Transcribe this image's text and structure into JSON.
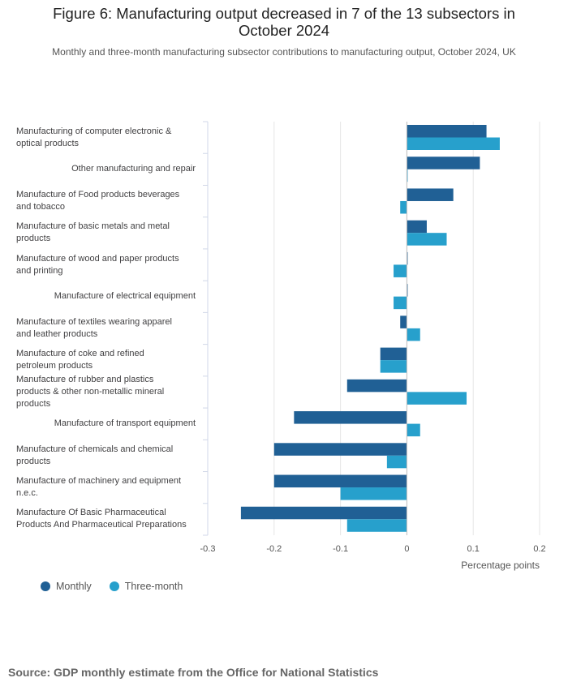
{
  "title": "Figure 6: Manufacturing output decreased in 7 of the 13 subsectors in October 2024",
  "subtitle": "Monthly and three-month manufacturing subsector contributions to manufacturing output, October 2024, UK",
  "source": "Source: GDP monthly estimate from the Office for National Statistics",
  "colors": {
    "monthly": "#206095",
    "three_month": "#27a0cc",
    "grid": "#e5e5e5",
    "axis": "#d0d7e8"
  },
  "legend": [
    {
      "name": "Monthly",
      "color": "#206095"
    },
    {
      "name": "Three-month",
      "color": "#27a0cc"
    }
  ],
  "chart_data": {
    "type": "bar",
    "orientation": "horizontal",
    "title": "Figure 6: Manufacturing output decreased in 7 of the 13 subsectors in October 2024",
    "xlabel": "Percentage points",
    "ylabel": "",
    "xlim": [
      -0.3,
      0.2
    ],
    "xticks": [
      -0.3,
      -0.2,
      -0.1,
      0,
      0.1,
      0.2
    ],
    "xtick_labels": [
      "-0.3",
      "-0.2",
      "-0.1",
      "0",
      "0.1",
      "0.2"
    ],
    "grid": true,
    "legend_position": "bottom-left",
    "categories": [
      [
        "Manufacturing of computer electronic &",
        "optical products"
      ],
      [
        "Other manufacturing and repair"
      ],
      [
        "Manufacture of Food products beverages",
        "and tobacco"
      ],
      [
        "Manufacture of basic metals and metal",
        "products"
      ],
      [
        "Manufacture of wood and paper products",
        "and printing"
      ],
      [
        "Manufacture of electrical equipment"
      ],
      [
        "Manufacture of textiles wearing apparel",
        "and leather products"
      ],
      [
        "Manufacture of coke and refined",
        "petroleum products"
      ],
      [
        "Manufacture of rubber and plastics",
        "products & other non-metallic mineral",
        "products"
      ],
      [
        "Manufacture of transport equipment"
      ],
      [
        "Manufacture of chemicals and chemical",
        "products"
      ],
      [
        "Manufacture of machinery and equipment",
        "n.e.c."
      ],
      [
        "Manufacture Of Basic Pharmaceutical",
        "Products And Pharmaceutical Preparations"
      ]
    ],
    "series": [
      {
        "name": "Monthly",
        "values": [
          0.12,
          0.11,
          0.07,
          0.03,
          0.0,
          0.0,
          -0.01,
          -0.04,
          -0.09,
          -0.17,
          -0.2,
          -0.2,
          -0.25
        ]
      },
      {
        "name": "Three-month",
        "values": [
          0.14,
          0.0,
          -0.01,
          0.06,
          -0.02,
          -0.02,
          0.02,
          -0.04,
          0.09,
          0.02,
          -0.03,
          -0.1,
          -0.09
        ]
      }
    ]
  }
}
